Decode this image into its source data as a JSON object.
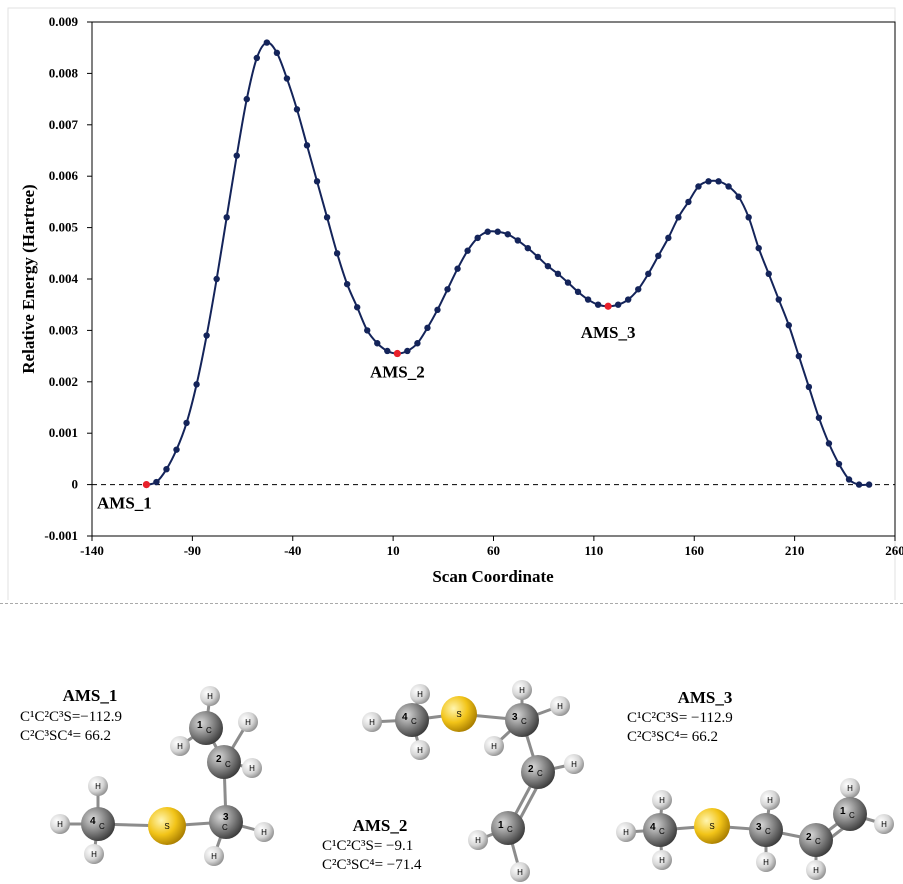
{
  "chart_data": {
    "type": "line",
    "xlabel": "Scan Coordinate",
    "ylabel": "Relative Energy (Hartree)",
    "xlim": [
      -140,
      260
    ],
    "ylim": [
      -0.001,
      0.009
    ],
    "xticks": [
      "-140",
      "-90",
      "-40",
      "10",
      "60",
      "110",
      "160",
      "210",
      "260"
    ],
    "yticks": [
      "-0.001",
      "0",
      "0.001",
      "0.002",
      "0.003",
      "0.004",
      "0.005",
      "0.006",
      "0.007",
      "0.008",
      "0.009"
    ],
    "reference_line": {
      "y": 0,
      "style": "dashed"
    },
    "series": [
      {
        "color": "#14245a",
        "x": [
          -112.9,
          -107.9,
          -102.9,
          -97.9,
          -92.9,
          -87.9,
          -82.9,
          -77.9,
          -72.9,
          -67.9,
          -62.9,
          -57.9,
          -52.9,
          -47.9,
          -42.9,
          -37.9,
          -32.9,
          -27.9,
          -22.9,
          -17.9,
          -12.9,
          -7.9,
          -2.9,
          2.1,
          7.1,
          12.1,
          17.1,
          22.1,
          27.1,
          32.1,
          37.1,
          42.1,
          47.1,
          52.1,
          57.1,
          62.1,
          67.1,
          72.1,
          77.1,
          82.1,
          87.1,
          92.1,
          97.1,
          102.1,
          107.1,
          112.1,
          117.1,
          122.1,
          127.1,
          132.1,
          137.1,
          142.1,
          147.1,
          152.1,
          157.1,
          162.1,
          167.1,
          172.1,
          177.1,
          182.1,
          187.1,
          192.1,
          197.1,
          202.1,
          207.1,
          212.1,
          217.1,
          222.1,
          227.1,
          232.1,
          237.1,
          242.1,
          247.1
        ],
        "y": [
          0,
          5e-05,
          0.0003,
          0.00068,
          0.0012,
          0.00195,
          0.0029,
          0.004,
          0.0052,
          0.0064,
          0.0075,
          0.0083,
          0.0086,
          0.0084,
          0.0079,
          0.0073,
          0.0066,
          0.0059,
          0.0052,
          0.0045,
          0.0039,
          0.00345,
          0.003,
          0.00275,
          0.0026,
          0.00255,
          0.0026,
          0.00275,
          0.00305,
          0.0034,
          0.0038,
          0.0042,
          0.00455,
          0.0048,
          0.00492,
          0.00492,
          0.00487,
          0.00475,
          0.0046,
          0.00443,
          0.00425,
          0.0041,
          0.00393,
          0.00375,
          0.0036,
          0.0035,
          0.00347,
          0.0035,
          0.0036,
          0.0038,
          0.0041,
          0.00445,
          0.0048,
          0.0052,
          0.0055,
          0.0058,
          0.0059,
          0.0059,
          0.0058,
          0.0056,
          0.0052,
          0.0046,
          0.0041,
          0.0036,
          0.0031,
          0.0025,
          0.0019,
          0.0013,
          0.0008,
          0.0004,
          0.0001,
          0,
          0
        ]
      }
    ],
    "highlight_points": [
      {
        "label": "AMS_1",
        "x": -112.9,
        "y": 0,
        "color": "#e8202a"
      },
      {
        "label": "AMS_2",
        "x": 12.1,
        "y": 0.00255,
        "color": "#e8202a"
      },
      {
        "label": "AMS_3",
        "x": 117.1,
        "y": 0.00347,
        "color": "#e8202a"
      }
    ]
  },
  "conformers": [
    {
      "title": "AMS_1",
      "angle1": "C¹C²C³S=−112.9",
      "angle2": "C²C³SC⁴=   66.2"
    },
    {
      "title": "AMS_2",
      "angle1": "C¹C²C³S= −9.1",
      "angle2": "C²C³SC⁴= −71.4"
    },
    {
      "title": "AMS_3",
      "angle1": "C¹C²C³S= −112.9",
      "angle2": "C²C³SC⁴=   66.2"
    }
  ],
  "atoms": {
    "carbon": "C",
    "sulfur": "S",
    "hydrogen": "H",
    "numbers": [
      "1",
      "2",
      "3",
      "4"
    ]
  },
  "colors": {
    "carbon": "#7a7a7a",
    "sulfur": "#f2c418",
    "hydrogen": "#dcdcdc",
    "bond": "#8c8c8c"
  }
}
